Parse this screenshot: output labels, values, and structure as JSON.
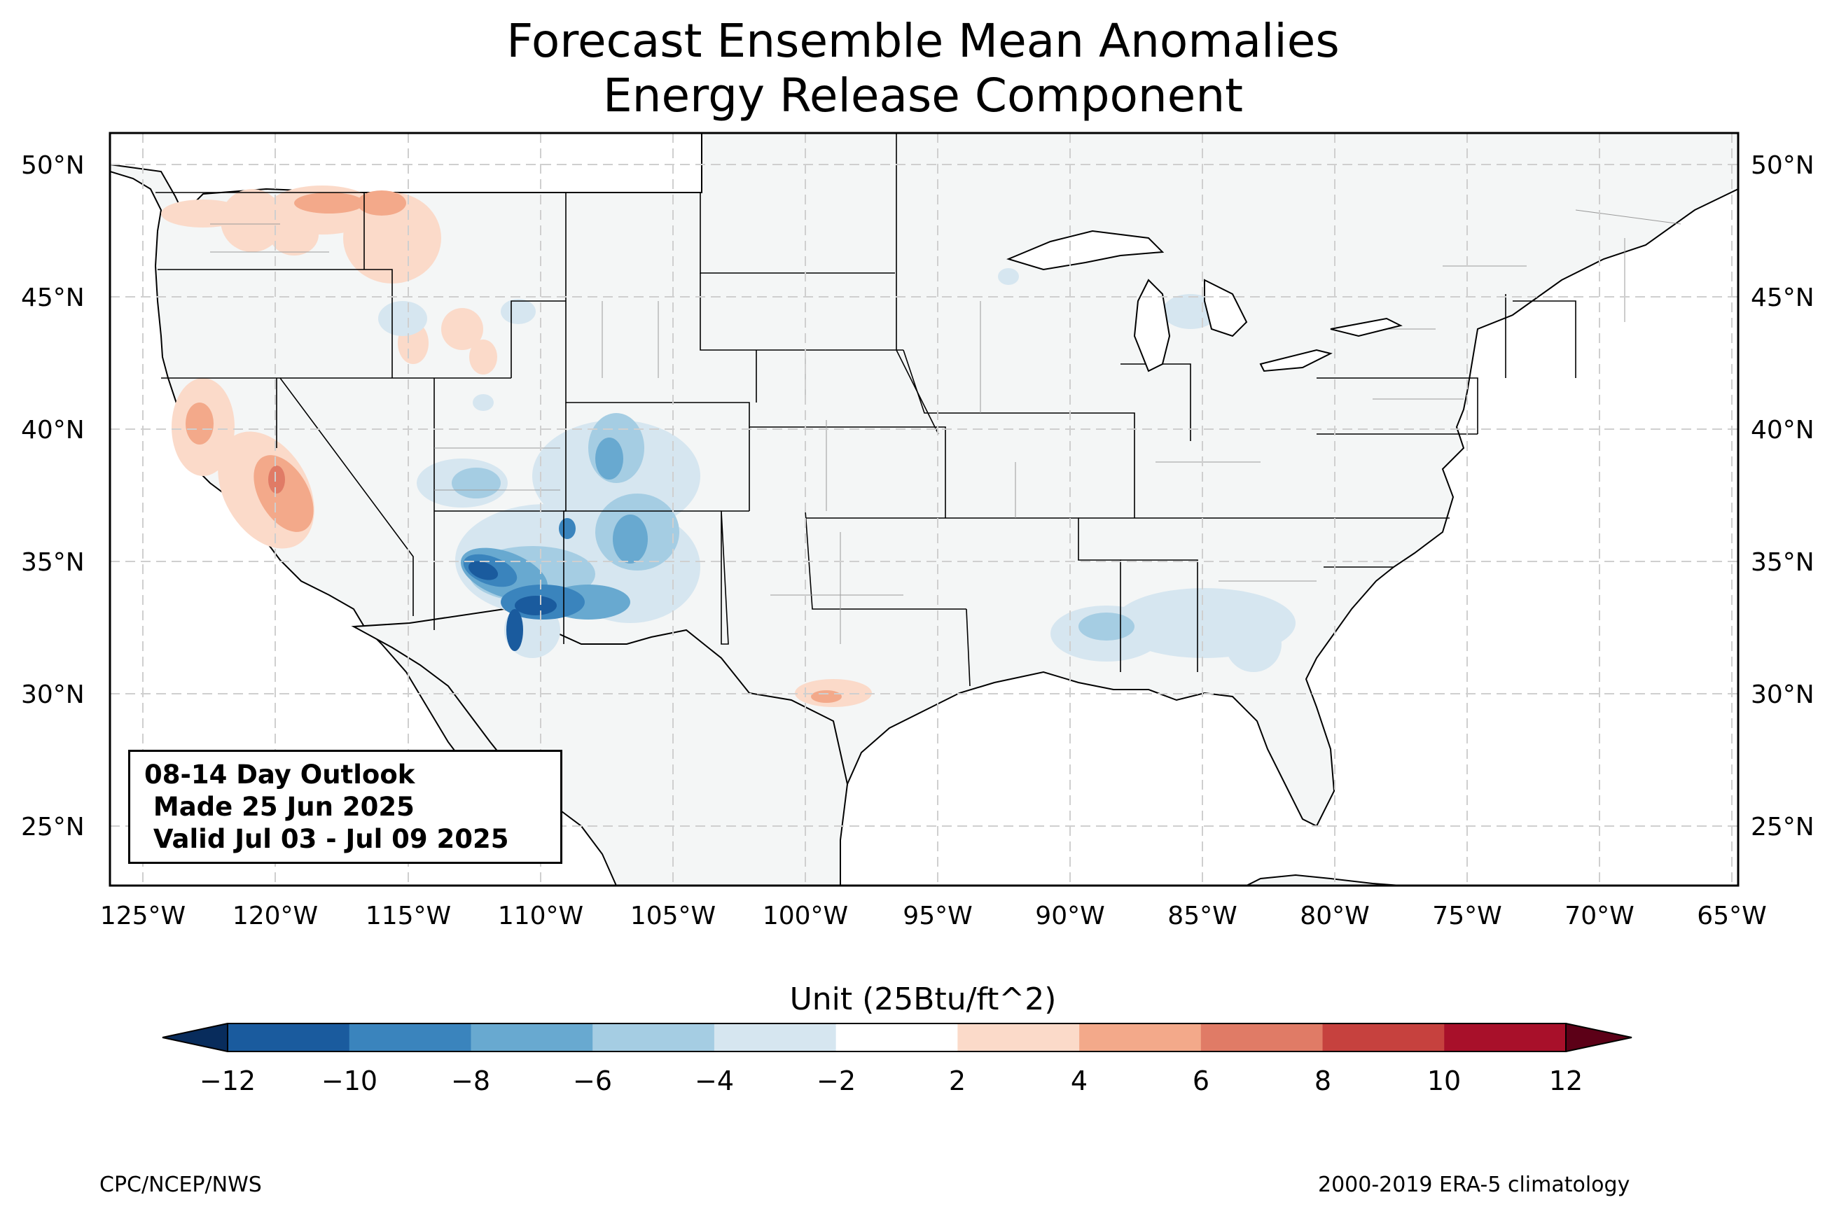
{
  "title": {
    "line1": "Forecast Ensemble Mean Anomalies",
    "line2": "Energy Release Component"
  },
  "axes": {
    "lat_labels": [
      "50°N",
      "45°N",
      "40°N",
      "35°N",
      "30°N",
      "25°N"
    ],
    "lon_labels": [
      "125°W",
      "120°W",
      "115°W",
      "110°W",
      "105°W",
      "100°W",
      "95°W",
      "90°W",
      "85°W",
      "80°W",
      "75°W",
      "70°W",
      "65°W"
    ],
    "lon_range": [
      -126.3,
      -64.9
    ],
    "lat_range": [
      22.8,
      51.2
    ],
    "gridlines": "dashed"
  },
  "outlook_box": {
    "line1": "08-14 Day Outlook",
    "line2": " Made 25 Jun 2025",
    "line3": " Valid Jul 03 - Jul 09 2025"
  },
  "colorbar": {
    "label": "Unit (25Btu/ft^2)",
    "ticks": [
      "−12",
      "−10",
      "−8",
      "−6",
      "−4",
      "−2",
      "2",
      "4",
      "6",
      "8",
      "10",
      "12"
    ],
    "colors": [
      "#1a5b9e",
      "#3a84bd",
      "#68a9d0",
      "#a5cde3",
      "#d6e6f0",
      "#ffffff",
      "#fbdac9",
      "#f3a98a",
      "#e07b66",
      "#c6413e",
      "#a8102a"
    ],
    "extend_low_color": "#082c5c",
    "extend_high_color": "#5c0017"
  },
  "footer": {
    "left": "CPC/NCEP/NWS",
    "right": "2000-2019 ERA-5 climatology"
  },
  "colors": {
    "land": "#f4f6f6",
    "border": "#000000",
    "county": "#9a9a9a",
    "grid": "#cfcfcf"
  }
}
